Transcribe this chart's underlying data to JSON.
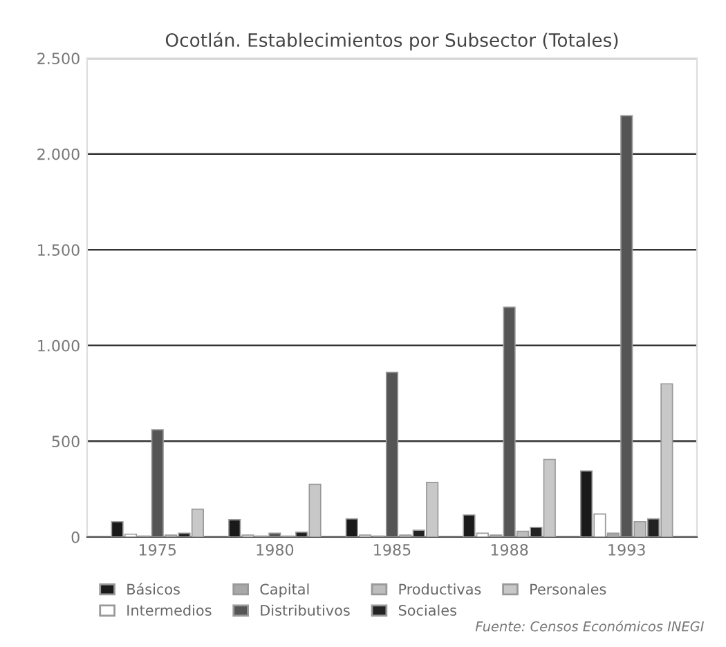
{
  "chart_data": {
    "type": "bar",
    "title": "Ocotlán. Establecimientos por Subsector (Totales)",
    "categories": [
      "1975",
      "1980",
      "1985",
      "1988",
      "1993"
    ],
    "series": [
      {
        "name": "Básicos",
        "color": "#1a1a1a",
        "values": [
          80,
          90,
          95,
          115,
          345
        ]
      },
      {
        "name": "Intermedios",
        "color": "#ffffff",
        "values": [
          15,
          10,
          10,
          20,
          120
        ]
      },
      {
        "name": "Capital",
        "color": "#a8a8a8",
        "values": [
          5,
          5,
          5,
          10,
          20
        ]
      },
      {
        "name": "Distributivos",
        "color": "#555555",
        "values": [
          560,
          20,
          860,
          1200,
          2200
        ]
      },
      {
        "name": "Productivas",
        "color": "#bdbdbd",
        "values": [
          10,
          5,
          10,
          30,
          80
        ]
      },
      {
        "name": "Sociales",
        "color": "#222222",
        "values": [
          20,
          25,
          35,
          50,
          95
        ]
      },
      {
        "name": "Personales",
        "color": "#c8c8c8",
        "values": [
          145,
          275,
          285,
          405,
          800
        ]
      }
    ],
    "ylim": [
      0,
      2500
    ],
    "yticks": [
      {
        "value": 0,
        "label": "0"
      },
      {
        "value": 500,
        "label": "500"
      },
      {
        "value": 1000,
        "label": "1.000"
      },
      {
        "value": 1500,
        "label": "1.500"
      },
      {
        "value": 2000,
        "label": "2.000"
      },
      {
        "value": 2500,
        "label": "2.500"
      }
    ],
    "grid": "y",
    "legend": "bottom",
    "annotations": [
      "Fuente: Censos Económicos INEGI"
    ]
  }
}
